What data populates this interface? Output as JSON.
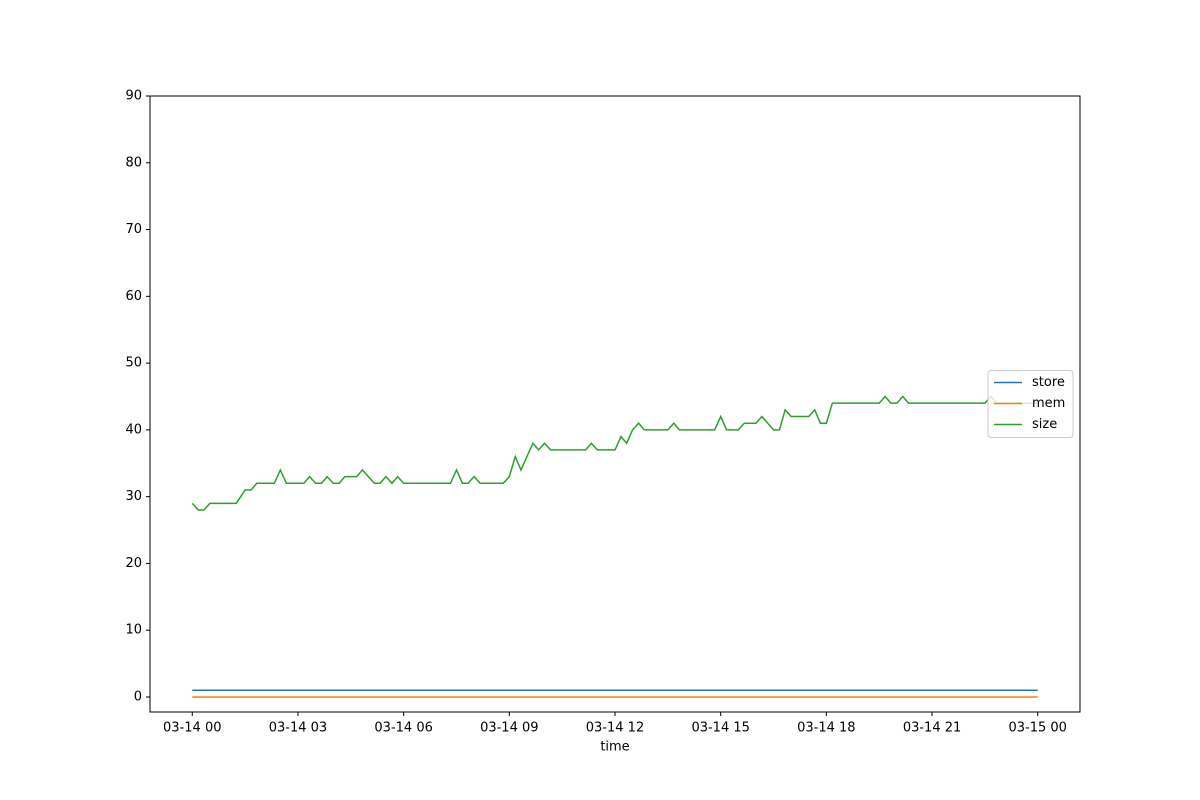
{
  "chart_data": {
    "type": "line",
    "xlabel": "time",
    "xlim": [
      -1.2,
      25.2
    ],
    "xticks": [
      {
        "value": 0,
        "label": "03-14 00"
      },
      {
        "value": 3,
        "label": "03-14 03"
      },
      {
        "value": 6,
        "label": "03-14 06"
      },
      {
        "value": 9,
        "label": "03-14 09"
      },
      {
        "value": 12,
        "label": "03-14 12"
      },
      {
        "value": 15,
        "label": "03-14 15"
      },
      {
        "value": 18,
        "label": "03-14 18"
      },
      {
        "value": 21,
        "label": "03-14 21"
      },
      {
        "value": 24,
        "label": "03-15 00"
      }
    ],
    "ylim": [
      -2.25,
      90
    ],
    "yticks": [
      0,
      10,
      20,
      30,
      40,
      50,
      60,
      70,
      80,
      90
    ],
    "grid": false,
    "legend": "center right",
    "series": [
      {
        "name": "store",
        "color": "#1f77b4",
        "x": [
          0,
          24
        ],
        "values": [
          1,
          1
        ]
      },
      {
        "name": "mem",
        "color": "#ff7f0e",
        "x": [
          0,
          24
        ],
        "values": [
          0,
          0
        ]
      },
      {
        "name": "size",
        "color": "#2ca02c",
        "x": [
          0,
          0.17,
          0.33,
          0.5,
          1.25,
          1.5,
          1.67,
          1.83,
          2.33,
          2.5,
          2.67,
          3.17,
          3.33,
          3.5,
          3.67,
          3.83,
          4.0,
          4.17,
          4.33,
          4.67,
          4.83,
          5.17,
          5.33,
          5.5,
          5.67,
          5.83,
          6.0,
          7.33,
          7.5,
          7.67,
          7.83,
          8.0,
          8.17,
          8.83,
          9.0,
          9.17,
          9.33,
          9.67,
          9.83,
          10.0,
          10.17,
          11.17,
          11.33,
          11.5,
          12.0,
          12.17,
          12.33,
          12.5,
          12.67,
          12.83,
          13.5,
          13.67,
          13.83,
          14.83,
          15.0,
          15.17,
          15.5,
          15.67,
          16.0,
          16.17,
          16.5,
          16.67,
          16.83,
          17.0,
          17.5,
          17.67,
          17.83,
          18.0,
          18.17,
          19.5,
          19.67,
          19.83,
          20.0,
          20.17,
          20.33,
          22.5,
          22.67,
          22.83,
          24.0
        ],
        "values": [
          29,
          28,
          28,
          29,
          29,
          31,
          31,
          32,
          32,
          34,
          32,
          32,
          33,
          32,
          32,
          33,
          32,
          32,
          33,
          33,
          34,
          32,
          32,
          33,
          32,
          33,
          32,
          32,
          34,
          32,
          32,
          33,
          32,
          32,
          33,
          36,
          34,
          38,
          37,
          38,
          37,
          37,
          38,
          37,
          37,
          39,
          38,
          40,
          41,
          40,
          40,
          41,
          40,
          40,
          42,
          40,
          40,
          41,
          41,
          42,
          40,
          40,
          43,
          42,
          42,
          43,
          41,
          41,
          44,
          44,
          45,
          44,
          44,
          45,
          44,
          44,
          45,
          44,
          44
        ]
      }
    ]
  }
}
